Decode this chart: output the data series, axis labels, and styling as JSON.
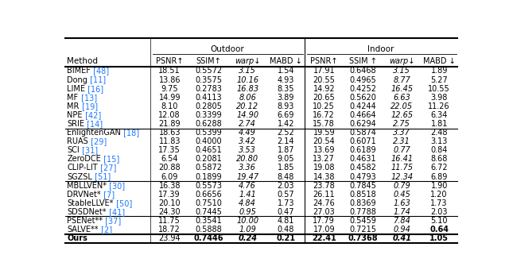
{
  "title_outdoor": "Outdoor",
  "title_indoor": "Indoor",
  "col_headers": [
    "Method",
    "PSNR↑",
    "SSIM↑",
    "warp↓",
    "MABD ↓",
    "PSNR↑",
    "SSIM ↑",
    "warp↓",
    "MABD ↓"
  ],
  "groups": [
    {
      "rows": [
        [
          "BIMEF",
          " [48]",
          "18.51",
          "0.5572",
          "3.15",
          "1.54",
          "17.91",
          "0.6468",
          "3.15",
          "1.89"
        ],
        [
          "Dong",
          " [11]",
          "13.86",
          "0.3575",
          "10.16",
          "4.93",
          "20.55",
          "0.4965",
          "8.77",
          "5.27"
        ],
        [
          "LIME",
          " [16]",
          "9.75",
          "0.2783",
          "16.83",
          "8.35",
          "14.92",
          "0.4252",
          "16.45",
          "10.55"
        ],
        [
          "MF",
          " [13]",
          "14.99",
          "0.4113",
          "8.06",
          "3.89",
          "20.65",
          "0.5620",
          "6.63",
          "3.98"
        ],
        [
          "MR",
          " [19]",
          "8.10",
          "0.2805",
          "20.12",
          "8.93",
          "10.25",
          "0.4244",
          "22.05",
          "11.26"
        ],
        [
          "NPE",
          " [42]",
          "12.08",
          "0.3399",
          "14.90",
          "6.69",
          "16.72",
          "0.4664",
          "12.65",
          "6.34"
        ],
        [
          "SRIE",
          " [14]",
          "21.89",
          "0.6288",
          "2.74",
          "1.42",
          "15.78",
          "0.6294",
          "2.75",
          "1.81"
        ]
      ]
    },
    {
      "rows": [
        [
          "EnlightenGAN",
          " [18]",
          "18.63",
          "0.5399",
          "4.49",
          "2.52",
          "19.59",
          "0.5874",
          "3.37",
          "2.48"
        ],
        [
          "RUAS",
          " [29]",
          "11.83",
          "0.4000",
          "3.42",
          "2.14",
          "20.54",
          "0.6071",
          "2.31",
          "3.13"
        ],
        [
          "SCI",
          " [31]",
          "17.35",
          "0.4651",
          "3.53",
          "1.87",
          "13.69",
          "0.6189",
          "0.77",
          "0.84"
        ],
        [
          "ZeroDCE",
          " [15]",
          "6.54",
          "0.2081",
          "20.80",
          "9.05",
          "13.27",
          "0.4631",
          "16.41",
          "8.68"
        ],
        [
          "CLIP-LIT",
          " [27]",
          "20.88",
          "0.5872",
          "3.36",
          "1.85",
          "19.08",
          "0.4582",
          "11.75",
          "6.72"
        ],
        [
          "SGZSL",
          " [51]",
          "6.09",
          "0.1899",
          "19.47",
          "8.48",
          "14.38",
          "0.4793",
          "12.34",
          "6.89"
        ]
      ]
    },
    {
      "rows": [
        [
          "MBLLVEN*",
          " [30]",
          "16.38",
          "0.5573",
          "4.76",
          "2.03",
          "23.78",
          "0.7845",
          "0.79",
          "1.90"
        ],
        [
          "DRVNet*",
          " [7]",
          "17.39",
          "0.6656",
          "1.41",
          "0.57",
          "26.11",
          "0.8518",
          "0.45",
          "1.20"
        ],
        [
          "StableLLVE*",
          " [50]",
          "20.10",
          "0.7510",
          "4.84",
          "1.73",
          "24.76",
          "0.8369",
          "1.63",
          "1.73"
        ],
        [
          "SDSDNet*",
          " [41]",
          "24.30",
          "0.7445",
          "0.95",
          "0.47",
          "27.03",
          "0.7788",
          "1.74",
          "2.03"
        ]
      ]
    },
    {
      "rows": [
        [
          "PSENet**",
          " [37]",
          "11.75",
          "0.3541",
          "10.00",
          "4.81",
          "17.79",
          "0.5459",
          "7.84",
          "5.10"
        ],
        [
          "SALVE**",
          " [2]",
          "18.72",
          "0.5888",
          "1.09",
          "0.48",
          "17.09",
          "0.7215",
          "0.94",
          "0.64"
        ]
      ]
    }
  ],
  "ours_row": [
    "Ours",
    "",
    "23.94",
    "0.7446",
    "0.24",
    "0.21",
    "22.41",
    "0.7368",
    "0.41",
    "1.05"
  ],
  "salve_bold_col": 9,
  "ours_bold_cols": [
    2,
    3,
    4,
    5,
    6,
    7,
    8
  ],
  "blue_color": "#1a75ff",
  "black_color": "#000000",
  "font_size": 7.0,
  "header_font_size": 7.5,
  "bg_color": "#ffffff"
}
